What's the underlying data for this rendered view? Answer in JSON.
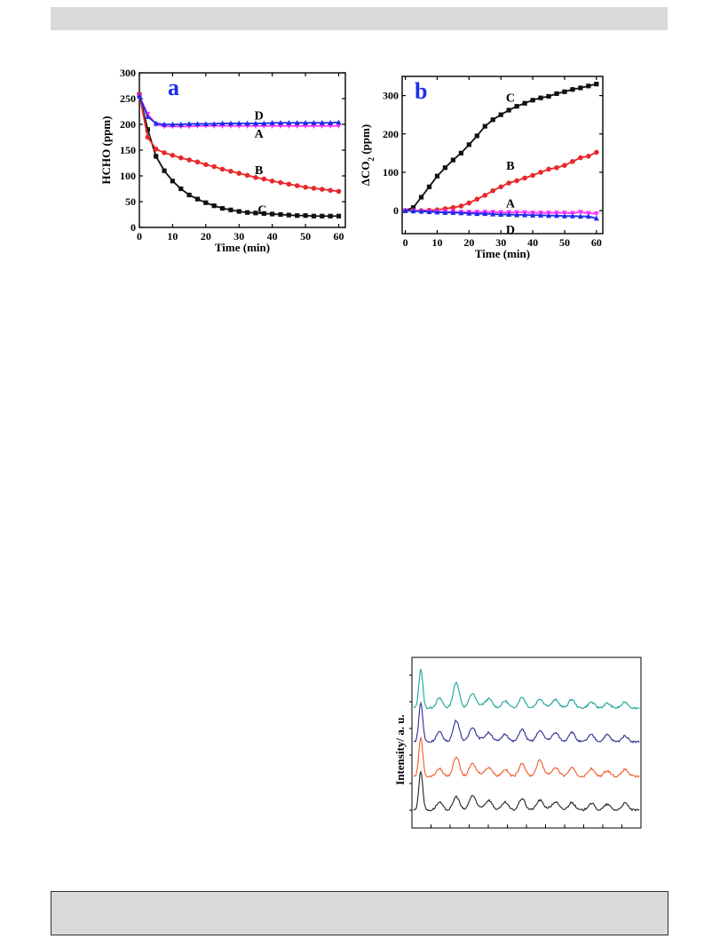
{
  "colors": {
    "A": "#ff33ff",
    "B": "#e8282c",
    "C": "#111111",
    "D": "#1c2ce8",
    "letter": "#1a2ee6",
    "top_bar": "#d9d9d9",
    "xrd_top": "#1aa597",
    "xrd_2": "#2a2e8e",
    "xrd_3": "#ef5a2a",
    "xrd_4": "#222222"
  },
  "chart_data": [
    {
      "type": "line",
      "panel_label": "a",
      "xlabel": "Time (min)",
      "ylabel": "HCHO (ppm)",
      "xlim": [
        0,
        62
      ],
      "ylim": [
        0,
        300
      ],
      "xticks": [
        "0",
        "10",
        "20",
        "30",
        "40",
        "50",
        "60"
      ],
      "yticks": [
        "0",
        "50",
        "100",
        "150",
        "200",
        "250",
        "300"
      ],
      "series": [
        {
          "name": "A",
          "markers": "triangle-down",
          "x": [
            0,
            2.5,
            5,
            7.5,
            10,
            12.5,
            15,
            17.5,
            20,
            22.5,
            25,
            27.5,
            30,
            32.5,
            35,
            37.5,
            40,
            42.5,
            45,
            47.5,
            50,
            52.5,
            55,
            57.5,
            60
          ],
          "y": [
            255,
            220,
            200,
            196,
            196,
            196,
            196,
            197,
            197,
            197,
            197,
            197,
            197,
            197,
            197,
            197,
            197,
            197,
            197,
            197,
            197,
            197,
            197,
            197,
            197
          ]
        },
        {
          "name": "B",
          "markers": "circle",
          "x": [
            0,
            2.5,
            5,
            7.5,
            10,
            12.5,
            15,
            17.5,
            20,
            22.5,
            25,
            27.5,
            30,
            32.5,
            35,
            37.5,
            40,
            42.5,
            45,
            47.5,
            50,
            52.5,
            55,
            57.5,
            60
          ],
          "y": [
            258,
            175,
            152,
            145,
            140,
            135,
            131,
            127,
            122,
            118,
            113,
            109,
            105,
            101,
            97,
            94,
            90,
            87,
            84,
            81,
            78,
            76,
            74,
            72,
            70
          ]
        },
        {
          "name": "C",
          "markers": "square",
          "x": [
            0,
            2.5,
            5,
            7.5,
            10,
            12.5,
            15,
            17.5,
            20,
            22.5,
            25,
            27.5,
            30,
            32.5,
            35,
            37.5,
            40,
            42.5,
            45,
            47.5,
            50,
            52.5,
            55,
            57.5,
            60
          ],
          "y": [
            258,
            190,
            138,
            110,
            90,
            75,
            63,
            55,
            48,
            42,
            37,
            34,
            31,
            29,
            28,
            27,
            26,
            25,
            24,
            23,
            23,
            22,
            22,
            22,
            22
          ]
        },
        {
          "name": "D",
          "markers": "triangle-up",
          "x": [
            0,
            2.5,
            5,
            7.5,
            10,
            12.5,
            15,
            17.5,
            20,
            22.5,
            25,
            27.5,
            30,
            32.5,
            35,
            37.5,
            40,
            42.5,
            45,
            47.5,
            50,
            52.5,
            55,
            57.5,
            60
          ],
          "y": [
            255,
            215,
            202,
            200,
            200,
            200,
            201,
            201,
            201,
            201,
            202,
            202,
            202,
            202,
            202,
            202,
            203,
            203,
            203,
            203,
            203,
            203,
            203,
            203,
            204
          ]
        }
      ],
      "annotations": [
        {
          "text": "D",
          "x": 36,
          "y": 218
        },
        {
          "text": "A",
          "x": 36,
          "y": 183
        },
        {
          "text": "B",
          "x": 36,
          "y": 112
        },
        {
          "text": "C",
          "x": 37,
          "y": 35
        }
      ]
    },
    {
      "type": "line",
      "panel_label": "b",
      "xlabel": "Time (min)",
      "ylabel": "ΔCO2 (ppm)",
      "xlim": [
        -1,
        62
      ],
      "ylim": [
        -60,
        350
      ],
      "xticks": [
        "0",
        "10",
        "20",
        "30",
        "40",
        "50",
        "60"
      ],
      "yticks": [
        "0",
        "100",
        "200",
        "300"
      ],
      "series": [
        {
          "name": "A",
          "markers": "triangle-down",
          "x": [
            0,
            2.5,
            5,
            7.5,
            10,
            12.5,
            15,
            17.5,
            20,
            22.5,
            25,
            27.5,
            30,
            32.5,
            35,
            37.5,
            40,
            42.5,
            45,
            47.5,
            50,
            52.5,
            55,
            57.5,
            60
          ],
          "y": [
            0,
            -1,
            -2,
            -2,
            -3,
            -3,
            -3,
            -4,
            -4,
            -4,
            -4,
            -4,
            -5,
            -5,
            -5,
            -5,
            -6,
            -6,
            -6,
            -6,
            -6,
            -7,
            -4,
            -7,
            -8
          ]
        },
        {
          "name": "B",
          "markers": "circle",
          "x": [
            0,
            2.5,
            5,
            7.5,
            10,
            12.5,
            15,
            17.5,
            20,
            22.5,
            25,
            27.5,
            30,
            32.5,
            35,
            37.5,
            40,
            42.5,
            45,
            47.5,
            50,
            52.5,
            55,
            57.5,
            60
          ],
          "y": [
            0,
            0,
            0,
            1,
            2,
            5,
            8,
            12,
            20,
            30,
            40,
            52,
            62,
            72,
            78,
            85,
            92,
            100,
            108,
            112,
            118,
            128,
            138,
            142,
            152
          ]
        },
        {
          "name": "C",
          "markers": "square",
          "x": [
            0,
            2.5,
            5,
            7.5,
            10,
            12.5,
            15,
            17.5,
            20,
            22.5,
            25,
            27.5,
            30,
            32.5,
            35,
            37.5,
            40,
            42.5,
            45,
            47.5,
            50,
            52.5,
            55,
            57.5,
            60
          ],
          "y": [
            0,
            8,
            35,
            62,
            90,
            112,
            132,
            150,
            172,
            195,
            220,
            237,
            250,
            262,
            272,
            280,
            288,
            294,
            298,
            305,
            310,
            316,
            320,
            325,
            330
          ]
        },
        {
          "name": "D",
          "markers": "triangle-up",
          "x": [
            0,
            2.5,
            5,
            7.5,
            10,
            12.5,
            15,
            17.5,
            20,
            22.5,
            25,
            27.5,
            30,
            32.5,
            35,
            37.5,
            40,
            42.5,
            45,
            47.5,
            50,
            52.5,
            55,
            57.5,
            60
          ],
          "y": [
            0,
            -1,
            -2,
            -3,
            -4,
            -5,
            -5,
            -6,
            -7,
            -8,
            -8,
            -9,
            -10,
            -10,
            -11,
            -11,
            -12,
            -12,
            -13,
            -13,
            -14,
            -14,
            -15,
            -15,
            -20
          ]
        }
      ],
      "annotations": [
        {
          "text": "C",
          "x": 33,
          "y": 295
        },
        {
          "text": "B",
          "x": 33,
          "y": 118
        },
        {
          "text": "A",
          "x": 33,
          "y": 20
        },
        {
          "text": "D",
          "x": 33,
          "y": -48
        }
      ]
    },
    {
      "type": "line",
      "ylabel": "Intensity/ a. u.",
      "series": [
        {
          "peaks": [
            [
              8,
              1.0
            ],
            [
              29,
              0.25
            ],
            [
              48,
              0.65
            ],
            [
              66,
              0.35
            ],
            [
              85,
              0.18
            ],
            [
              103,
              0.18
            ],
            [
              122,
              0.28
            ],
            [
              142,
              0.2
            ],
            [
              160,
              0.18
            ],
            [
              178,
              0.22
            ],
            [
              200,
              0.15
            ],
            [
              218,
              0.12
            ],
            [
              238,
              0.15
            ]
          ]
        },
        {
          "peaks": [
            [
              8,
              1.0
            ],
            [
              29,
              0.25
            ],
            [
              48,
              0.55
            ],
            [
              66,
              0.35
            ],
            [
              85,
              0.18
            ],
            [
              103,
              0.2
            ],
            [
              122,
              0.32
            ],
            [
              142,
              0.25
            ],
            [
              160,
              0.2
            ],
            [
              178,
              0.25
            ],
            [
              200,
              0.18
            ],
            [
              218,
              0.18
            ],
            [
              238,
              0.15
            ]
          ]
        },
        {
          "peaks": [
            [
              8,
              1.0
            ],
            [
              29,
              0.2
            ],
            [
              48,
              0.5
            ],
            [
              66,
              0.3
            ],
            [
              85,
              0.18
            ],
            [
              103,
              0.18
            ],
            [
              122,
              0.34
            ],
            [
              142,
              0.38
            ],
            [
              160,
              0.2
            ],
            [
              178,
              0.22
            ],
            [
              200,
              0.2
            ],
            [
              218,
              0.15
            ],
            [
              238,
              0.18
            ]
          ]
        },
        {
          "peaks": [
            [
              8,
              1.0
            ],
            [
              29,
              0.2
            ],
            [
              48,
              0.35
            ],
            [
              66,
              0.35
            ],
            [
              85,
              0.2
            ],
            [
              103,
              0.2
            ],
            [
              122,
              0.3
            ],
            [
              142,
              0.22
            ],
            [
              160,
              0.18
            ],
            [
              178,
              0.2
            ],
            [
              200,
              0.18
            ],
            [
              218,
              0.15
            ],
            [
              238,
              0.18
            ]
          ]
        }
      ]
    }
  ]
}
